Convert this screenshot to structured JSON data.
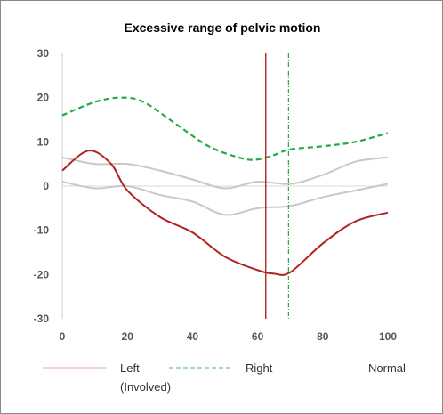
{
  "chart_data": {
    "type": "line",
    "title": "Excessive range of pelvic motion",
    "xlim": [
      0,
      100
    ],
    "ylim": [
      -30,
      30
    ],
    "x_ticks": [
      "0",
      "20",
      "40",
      "60",
      "80",
      "100"
    ],
    "y_ticks": [
      "30",
      "20",
      "10",
      "0",
      "-10",
      "-20",
      "-30"
    ],
    "grid": false,
    "legend_position": "bottom",
    "series": [
      {
        "name": "Left (Involved)",
        "color": "#b22222",
        "style": "solid",
        "x": [
          0,
          8,
          15,
          20,
          30,
          40,
          50,
          60,
          65,
          70,
          80,
          90,
          100
        ],
        "y": [
          3.5,
          8,
          5,
          -1,
          -7,
          -10.5,
          -16,
          -19,
          -19.8,
          -19.5,
          -13,
          -8,
          -6
        ]
      },
      {
        "name": "Right",
        "color": "#22aa44",
        "style": "dashed",
        "x": [
          0,
          10,
          18,
          25,
          35,
          45,
          55,
          60,
          65,
          70,
          80,
          90,
          100
        ],
        "y": [
          16,
          19,
          20,
          19,
          14,
          9,
          6.3,
          6,
          7,
          8.3,
          9,
          10,
          12
        ]
      },
      {
        "name": "Normal",
        "color": "#c8c8c8",
        "style": "solid",
        "x": [
          0,
          10,
          20,
          30,
          40,
          50,
          60,
          70,
          80,
          90,
          100
        ],
        "y": [
          6.5,
          5,
          5,
          3.5,
          1.5,
          -0.5,
          1,
          0.5,
          2.5,
          5.5,
          6.5
        ]
      },
      {
        "name": "Normal",
        "color": "#c8c8c8",
        "style": "solid",
        "x": [
          0,
          10,
          20,
          30,
          40,
          50,
          60,
          70,
          80,
          90,
          100
        ],
        "y": [
          1,
          -0.5,
          0,
          -2,
          -3.5,
          -6.5,
          -5,
          -4.5,
          -2.5,
          -1,
          0.5
        ]
      }
    ],
    "vertical_markers": [
      {
        "x": 62.5,
        "color": "#b22222",
        "style": "solid"
      },
      {
        "x": 69.5,
        "color": "#22aa44",
        "style": "dash-dot"
      }
    ],
    "legend": [
      {
        "label": "Left",
        "label2": "(Involved)",
        "color": "#f0b8b8",
        "style": "solid"
      },
      {
        "label": "Right",
        "label2": "",
        "color": "#70c090",
        "style": "dashed"
      },
      {
        "label": "Normal",
        "label2": "",
        "color": "#ffffff",
        "style": "none"
      }
    ]
  }
}
